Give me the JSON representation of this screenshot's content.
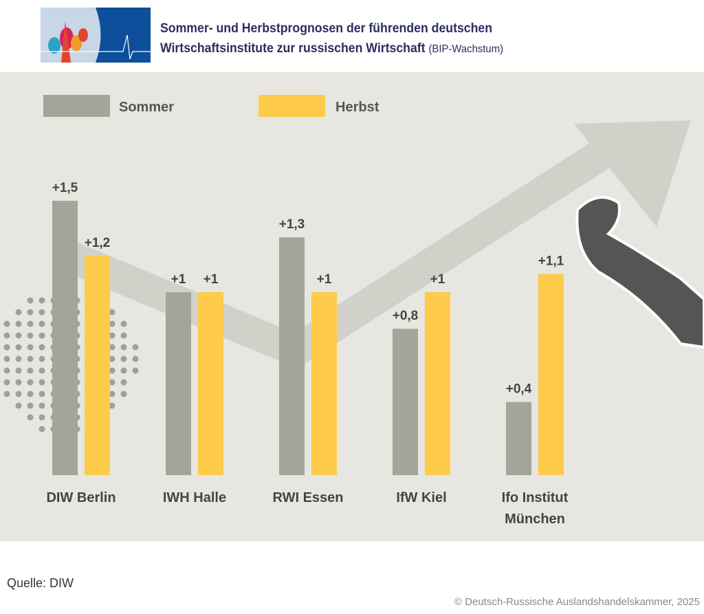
{
  "header": {
    "title_line1": "Sommer- und Herbstprognosen der führenden deutschen",
    "title_line2": "Wirtschaftsinstitute zur russischen Wirtschaft",
    "title_suffix": "(BIP-Wachstum)"
  },
  "footer": {
    "source": "Quelle: DIW",
    "copyright": "© Deutsch-Russische Auslandshandelskammer, 2025"
  },
  "colors": {
    "sommer": "#a4a498",
    "herbst": "#fecb4a",
    "background": "#e7e6e0",
    "title": "#2b2f5e"
  },
  "chart_data": {
    "type": "bar",
    "title": "Sommer- und Herbstprognosen der führenden deutschen Wirtschaftsinstitute zur russischen Wirtschaft (BIP-Wachstum)",
    "categories": [
      "DIW Berlin",
      "IWH Halle",
      "RWI Essen",
      "IfW Kiel",
      "Ifo Institut München"
    ],
    "series": [
      {
        "name": "Sommer",
        "values": [
          1.5,
          1,
          1.3,
          0.8,
          0.4
        ],
        "labels": [
          "+1,5",
          "+1",
          "+1,3",
          "+0,8",
          "+0,4"
        ]
      },
      {
        "name": "Herbst",
        "values": [
          1.2,
          1,
          1,
          1,
          1.1
        ],
        "labels": [
          "+1,2",
          "+1",
          "+1",
          "+1",
          "+1,1"
        ]
      }
    ],
    "ylim": [
      0,
      2.2
    ],
    "grid": false,
    "legend": "top-left"
  }
}
